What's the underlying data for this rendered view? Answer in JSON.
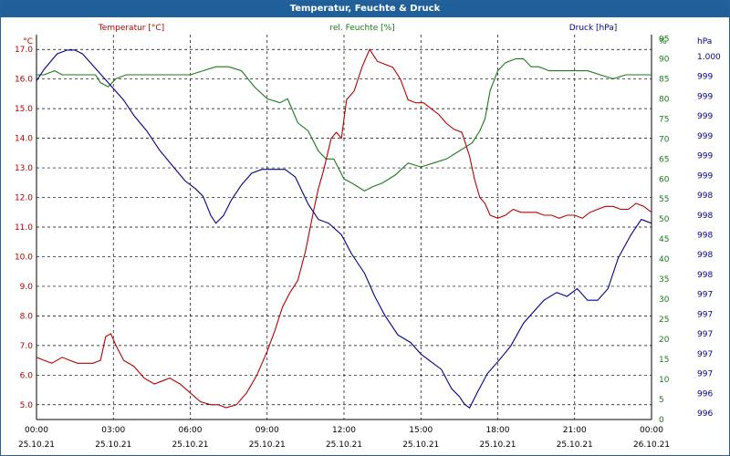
{
  "window": {
    "title": "Temperatur, Feuchte & Druck"
  },
  "colors": {
    "temperature": "#b30000",
    "humidity": "#1a7a1a",
    "pressure": "#00008b",
    "title_bar": "#1f5f9a",
    "grid": "#000000"
  },
  "chart_data": {
    "type": "line",
    "title": "Temperatur, Feuchte & Druck",
    "grid": true,
    "x_unit": "hours since 25.10.21 00:00",
    "x_ticks": [
      {
        "time": "00:00",
        "date": "25.10.21",
        "h": 0
      },
      {
        "time": "03:00",
        "date": "25.10.21",
        "h": 3
      },
      {
        "time": "06:00",
        "date": "25.10.21",
        "h": 6
      },
      {
        "time": "09:00",
        "date": "25.10.21",
        "h": 9
      },
      {
        "time": "12:00",
        "date": "25.10.21",
        "h": 12
      },
      {
        "time": "15:00",
        "date": "25.10.21",
        "h": 15
      },
      {
        "time": "18:00",
        "date": "25.10.21",
        "h": 18
      },
      {
        "time": "21:00",
        "date": "25.10.21",
        "h": 21
      },
      {
        "time": "00:00",
        "date": "26.10.21",
        "h": 24
      }
    ],
    "xlim": [
      0,
      24
    ],
    "axes": {
      "temperature": {
        "header": "Temperatur [°C]",
        "unit": "°C",
        "ylim": [
          4.5,
          17.5
        ],
        "ticks": [
          "5.0",
          "6.0",
          "7.0",
          "8.0",
          "9.0",
          "10.0",
          "11.0",
          "12.0",
          "13.0",
          "14.0",
          "15.0",
          "16.0",
          "17.0"
        ]
      },
      "humidity": {
        "header": "rel. Feuchte [%]",
        "unit": "%",
        "ylim": [
          0,
          96
        ],
        "ticks": [
          "0",
          "5",
          "10",
          "15",
          "20",
          "25",
          "30",
          "35",
          "40",
          "45",
          "50",
          "55",
          "60",
          "65",
          "70",
          "75",
          "80",
          "85",
          "90",
          "95",
          "%"
        ]
      },
      "pressure": {
        "header": "Druck [hPa]",
        "unit": "hPa",
        "ticks": [
          "996",
          "996",
          "997",
          "997",
          "997",
          "997",
          "997",
          "998",
          "998",
          "998",
          "998",
          "998",
          "999",
          "999",
          "999",
          "999",
          "999",
          "999",
          "1.000"
        ]
      }
    },
    "series": [
      {
        "name": "Temperatur [°C]",
        "axis": "temperature",
        "x": [
          0,
          0.3,
          0.6,
          1,
          1.3,
          1.6,
          2,
          2.2,
          2.5,
          2.7,
          2.9,
          3.1,
          3.4,
          3.8,
          4.2,
          4.6,
          4.9,
          5.2,
          5.6,
          6,
          6.4,
          6.8,
          7.1,
          7.4,
          7.8,
          8.2,
          8.6,
          9,
          9.3,
          9.6,
          9.9,
          10.2,
          10.5,
          10.8,
          11,
          11.2,
          11.5,
          11.7,
          11.9,
          12.1,
          12.4,
          12.7,
          13,
          13.3,
          13.6,
          13.9,
          14.2,
          14.5,
          14.8,
          15.1,
          15.4,
          15.7,
          16,
          16.3,
          16.6,
          16.9,
          17.1,
          17.3,
          17.5,
          17.7,
          18,
          18.3,
          18.6,
          18.9,
          19.2,
          19.5,
          19.8,
          20.1,
          20.4,
          20.7,
          21,
          21.3,
          21.6,
          21.9,
          22.2,
          22.5,
          22.8,
          23.1,
          23.4,
          23.7,
          24
        ],
        "values": [
          6.6,
          6.5,
          6.4,
          6.6,
          6.5,
          6.4,
          6.4,
          6.4,
          6.5,
          7.3,
          7.4,
          7.0,
          6.5,
          6.3,
          5.9,
          5.7,
          5.8,
          5.9,
          5.7,
          5.4,
          5.1,
          5.0,
          5.0,
          4.9,
          5.0,
          5.4,
          6.0,
          6.8,
          7.5,
          8.3,
          8.8,
          9.2,
          10.2,
          11.5,
          12.3,
          12.9,
          14.0,
          14.2,
          14.0,
          15.3,
          15.6,
          16.4,
          17.0,
          16.6,
          16.5,
          16.4,
          16.0,
          15.3,
          15.2,
          15.2,
          15.0,
          14.8,
          14.5,
          14.3,
          14.2,
          13.4,
          12.6,
          12.0,
          11.8,
          11.4,
          11.3,
          11.4,
          11.6,
          11.5,
          11.5,
          11.5,
          11.4,
          11.4,
          11.3,
          11.4,
          11.4,
          11.3,
          11.5,
          11.6,
          11.7,
          11.7,
          11.6,
          11.6,
          11.8,
          11.7,
          11.5
        ]
      },
      {
        "name": "rel. Feuchte [%]",
        "axis": "humidity",
        "x": [
          0,
          0.3,
          0.7,
          1,
          1.4,
          1.7,
          2,
          2.3,
          2.5,
          2.8,
          3.1,
          3.5,
          4,
          4.5,
          5,
          5.5,
          6,
          6.5,
          7,
          7.5,
          8,
          8.5,
          9,
          9.5,
          9.8,
          10.2,
          10.6,
          11,
          11.3,
          11.6,
          12,
          12.3,
          12.8,
          13.1,
          13.5,
          14,
          14.5,
          15,
          15.5,
          16,
          16.5,
          17,
          17.3,
          17.5,
          17.7,
          18,
          18.3,
          18.7,
          19,
          19.3,
          19.6,
          20,
          20.5,
          21,
          21.5,
          22,
          22.5,
          23,
          23.5,
          24
        ],
        "values": [
          86,
          86,
          87,
          86,
          86,
          86,
          86,
          86,
          84,
          83,
          85,
          86,
          86,
          86,
          86,
          86,
          86,
          87,
          88,
          88,
          87,
          83,
          80,
          79,
          80,
          74,
          72,
          67,
          65,
          65,
          60,
          59,
          57,
          58,
          59,
          61,
          64,
          63,
          64,
          65,
          67,
          69,
          72,
          75,
          82,
          87,
          89,
          90,
          90,
          88,
          88,
          87,
          87,
          87,
          87,
          86,
          85,
          86,
          86,
          86
        ]
      },
      {
        "name": "Druck [hPa]",
        "axis": "pressure",
        "rel": [
          0.88,
          0.91,
          0.95,
          0.96,
          0.96,
          0.95,
          0.92,
          0.89,
          0.86,
          0.83,
          0.79,
          0.75,
          0.7,
          0.66,
          0.62,
          0.6,
          0.58,
          0.53,
          0.51,
          0.53,
          0.57,
          0.61,
          0.64,
          0.65,
          0.65,
          0.65,
          0.63,
          0.56,
          0.52,
          0.51,
          0.48,
          0.43,
          0.38,
          0.32,
          0.27,
          0.22,
          0.2,
          0.17,
          0.15,
          0.13,
          0.08,
          0.06,
          0.04,
          0.03,
          0.07,
          0.12,
          0.15,
          0.19,
          0.25,
          0.28,
          0.31,
          0.33,
          0.32,
          0.34,
          0.31,
          0.31,
          0.34,
          0.42,
          0.48,
          0.52,
          0.51
        ],
        "x": [
          0,
          0.3,
          0.8,
          1.2,
          1.5,
          1.8,
          2.2,
          2.6,
          3,
          3.4,
          3.8,
          4.3,
          4.8,
          5.3,
          5.8,
          6.2,
          6.5,
          6.8,
          7,
          7.3,
          7.6,
          8,
          8.4,
          8.8,
          9.2,
          9.7,
          10.1,
          10.6,
          11,
          11.4,
          11.9,
          12.3,
          12.8,
          13.2,
          13.6,
          14.1,
          14.6,
          15,
          15.4,
          15.8,
          16.2,
          16.5,
          16.7,
          16.9,
          17.2,
          17.6,
          18,
          18.5,
          19,
          19.4,
          19.8,
          20.3,
          20.7,
          21.1,
          21.5,
          21.9,
          22.3,
          22.7,
          23.2,
          23.6,
          24
        ]
      }
    ]
  }
}
